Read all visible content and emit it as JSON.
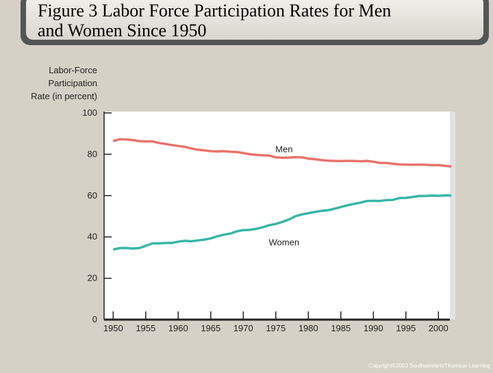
{
  "chart_data": {
    "type": "line",
    "title": [
      "Figure 3 Labor Force Participation Rates for Men",
      "and Women Since 1950"
    ],
    "ylabel": [
      "Labor-Force",
      "Participation",
      "Rate (in percent)"
    ],
    "annotations": [
      {
        "text": "Men",
        "x": 1975,
        "y": 81
      },
      {
        "text": "Women",
        "x": 1975,
        "y": 36
      }
    ],
    "footer": "Copyright©2003  Southwestern/Thomson Learning",
    "x": [
      1950,
      1951,
      1952,
      1953,
      1954,
      1955,
      1956,
      1957,
      1958,
      1959,
      1960,
      1961,
      1962,
      1963,
      1964,
      1965,
      1966,
      1967,
      1968,
      1969,
      1970,
      1971,
      1972,
      1973,
      1974,
      1975,
      1976,
      1977,
      1978,
      1979,
      1980,
      1981,
      1982,
      1983,
      1984,
      1985,
      1986,
      1987,
      1988,
      1989,
      1990,
      1991,
      1992,
      1993,
      1994,
      1995,
      1996,
      1997,
      1998,
      1999,
      2000,
      2001,
      2002
    ],
    "series": [
      {
        "name": "Men",
        "color": "#e8736a",
        "values": [
          86.4,
          87.3,
          87.2,
          86.9,
          86.4,
          86.2,
          86.3,
          85.5,
          85.0,
          84.5,
          84.0,
          83.6,
          82.8,
          82.2,
          81.9,
          81.5,
          81.4,
          81.5,
          81.2,
          81.1,
          80.6,
          80.0,
          79.7,
          79.5,
          79.4,
          78.5,
          78.3,
          78.4,
          78.6,
          78.5,
          77.9,
          77.6,
          77.2,
          76.9,
          76.8,
          76.7,
          76.8,
          76.8,
          76.6,
          76.8,
          76.4,
          75.8,
          75.8,
          75.4,
          75.1,
          75.0,
          74.9,
          75.0,
          74.9,
          74.7,
          74.8,
          74.4,
          74.1
        ]
      },
      {
        "name": "Women",
        "color": "#38b6a6",
        "values": [
          33.9,
          34.6,
          34.7,
          34.4,
          34.6,
          35.7,
          36.9,
          36.9,
          37.1,
          37.1,
          37.7,
          38.1,
          37.9,
          38.3,
          38.7,
          39.3,
          40.3,
          41.1,
          41.6,
          42.7,
          43.3,
          43.4,
          43.9,
          44.7,
          45.7,
          46.3,
          47.3,
          48.4,
          50.0,
          50.9,
          51.5,
          52.1,
          52.6,
          52.9,
          53.6,
          54.5,
          55.3,
          56.0,
          56.6,
          57.4,
          57.5,
          57.4,
          57.8,
          57.9,
          58.8,
          58.9,
          59.3,
          59.8,
          59.8,
          60.0,
          59.9,
          60.1,
          60.0
        ]
      }
    ],
    "xlim": [
      1948.6,
      2002.6
    ],
    "xticks": [
      1950,
      1955,
      1960,
      1965,
      1970,
      1975,
      1980,
      1985,
      1990,
      1995,
      2000
    ],
    "ylim": [
      0,
      100
    ],
    "yticks": [
      0,
      20,
      40,
      60,
      80,
      100
    ],
    "grid": false
  }
}
